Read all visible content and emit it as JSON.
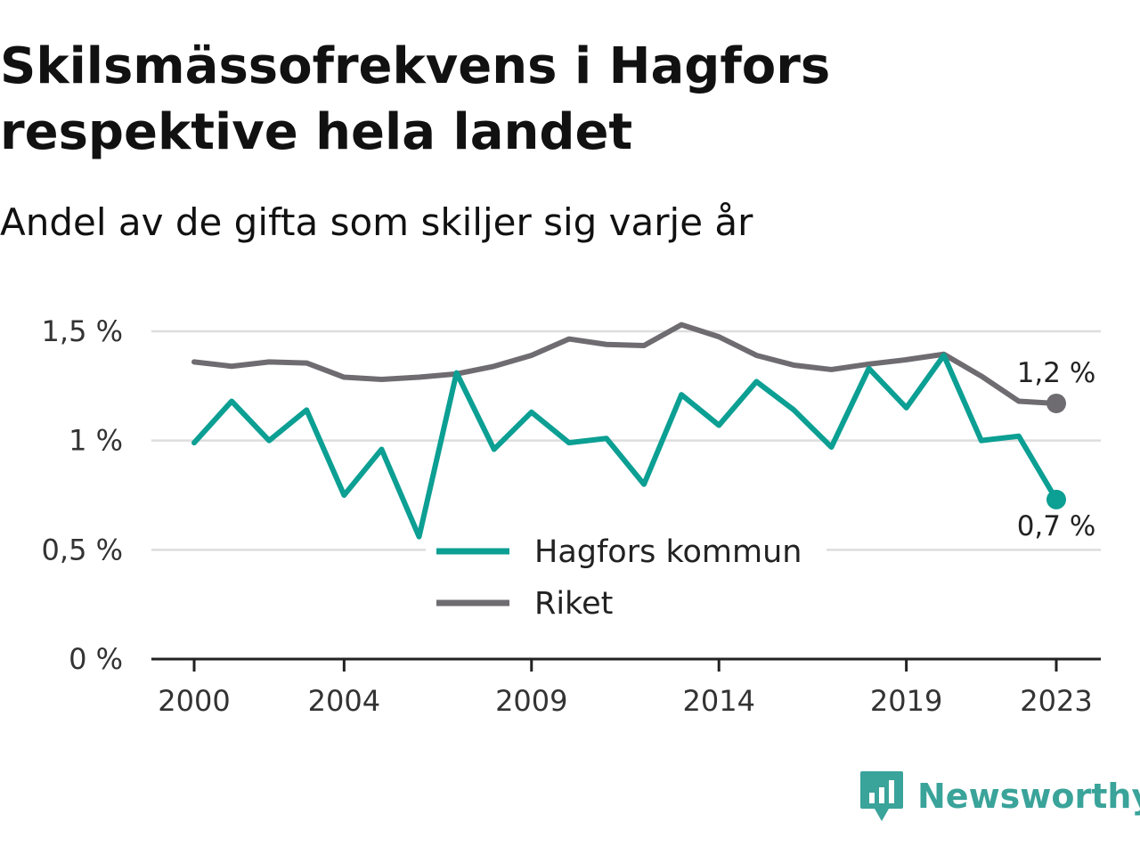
{
  "header": {
    "title": "Skilsmässofrekvens i Hagfors respektive hela landet",
    "subtitle": "Andel av de gifta som skiljer sig varje år"
  },
  "brand": {
    "name": "Newsworthy",
    "color": "#3aa39a",
    "icon": "bar-chart-badge-icon"
  },
  "colors": {
    "hagfors": "#0c9f93",
    "riket": "#6e6c71",
    "grid": "#dddddd",
    "axis": "#222222"
  },
  "chart_data": {
    "type": "line",
    "title": "Skilsmässofrekvens i Hagfors respektive hela landet",
    "subtitle": "Andel av de gifta som skiljer sig varje år",
    "x": [
      2000,
      2001,
      2002,
      2003,
      2004,
      2005,
      2006,
      2007,
      2008,
      2009,
      2010,
      2011,
      2012,
      2013,
      2014,
      2015,
      2016,
      2017,
      2018,
      2019,
      2020,
      2021,
      2022,
      2023
    ],
    "series": [
      {
        "name": "Hagfors kommun",
        "color": "#0c9f93",
        "values": [
          0.99,
          1.18,
          1.0,
          1.14,
          0.75,
          0.96,
          0.56,
          1.31,
          0.96,
          1.13,
          0.99,
          1.01,
          0.8,
          1.21,
          1.07,
          1.27,
          1.14,
          0.97,
          1.33,
          1.15,
          1.39,
          1.0,
          1.02,
          0.73
        ],
        "end_label": "0,7 %"
      },
      {
        "name": "Riket",
        "color": "#6e6c71",
        "values": [
          1.36,
          1.34,
          1.36,
          1.355,
          1.29,
          1.28,
          1.29,
          1.305,
          1.34,
          1.39,
          1.465,
          1.44,
          1.435,
          1.53,
          1.475,
          1.39,
          1.345,
          1.325,
          1.35,
          1.37,
          1.395,
          1.295,
          1.18,
          1.17
        ],
        "end_label": "1,2 %"
      }
    ],
    "x_ticks": [
      2000,
      2004,
      2009,
      2014,
      2019,
      2023
    ],
    "x_tick_labels": [
      "2000",
      "2004",
      "2009",
      "2014",
      "2019",
      "2023"
    ],
    "y_ticks": [
      0,
      0.5,
      1,
      1.5
    ],
    "y_tick_labels": [
      "0 %",
      "0,5 %",
      "1 %",
      "1,5 %"
    ],
    "xlim": [
      2000,
      2023
    ],
    "ylim": [
      0,
      1.5
    ],
    "grid": true,
    "legend_position": "bottom-center",
    "xlabel": "",
    "ylabel": ""
  }
}
